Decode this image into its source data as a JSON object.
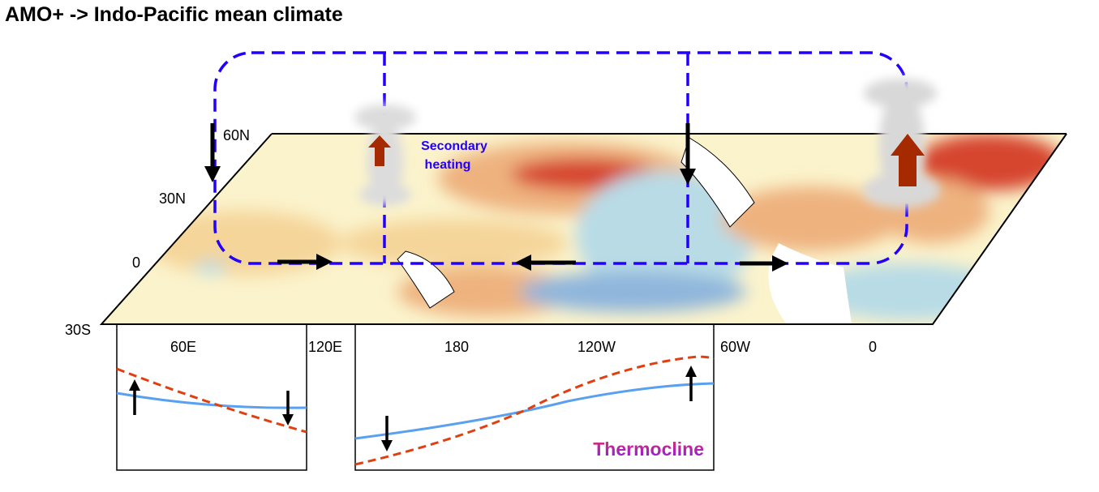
{
  "title": "AMO+ -> Indo-Pacific mean climate",
  "annotations": {
    "secondary_heating_1": "Secondary",
    "secondary_heating_2": "heating",
    "thermocline": "Thermocline"
  },
  "lat_labels": [
    "60N",
    "30N",
    "0",
    "30S"
  ],
  "lon_labels": [
    "60E",
    "120E",
    "180",
    "120W",
    "60W",
    "0"
  ],
  "colors": {
    "circulation": "#2200ff",
    "warm_strong": "#d6452f",
    "warm_mid": "#eea070",
    "warm_light": "#f7dca0",
    "cool": "#b8dbe6",
    "cool_strong": "#8fb6dc",
    "heating_arrow": "#a52a00",
    "sst_line": "#5aa0f0",
    "thermocline_line": "#e04010"
  },
  "icons": [
    "cloud-icon",
    "up-arrow-icon",
    "down-arrow-icon",
    "left-arrow-icon",
    "right-arrow-icon"
  ]
}
